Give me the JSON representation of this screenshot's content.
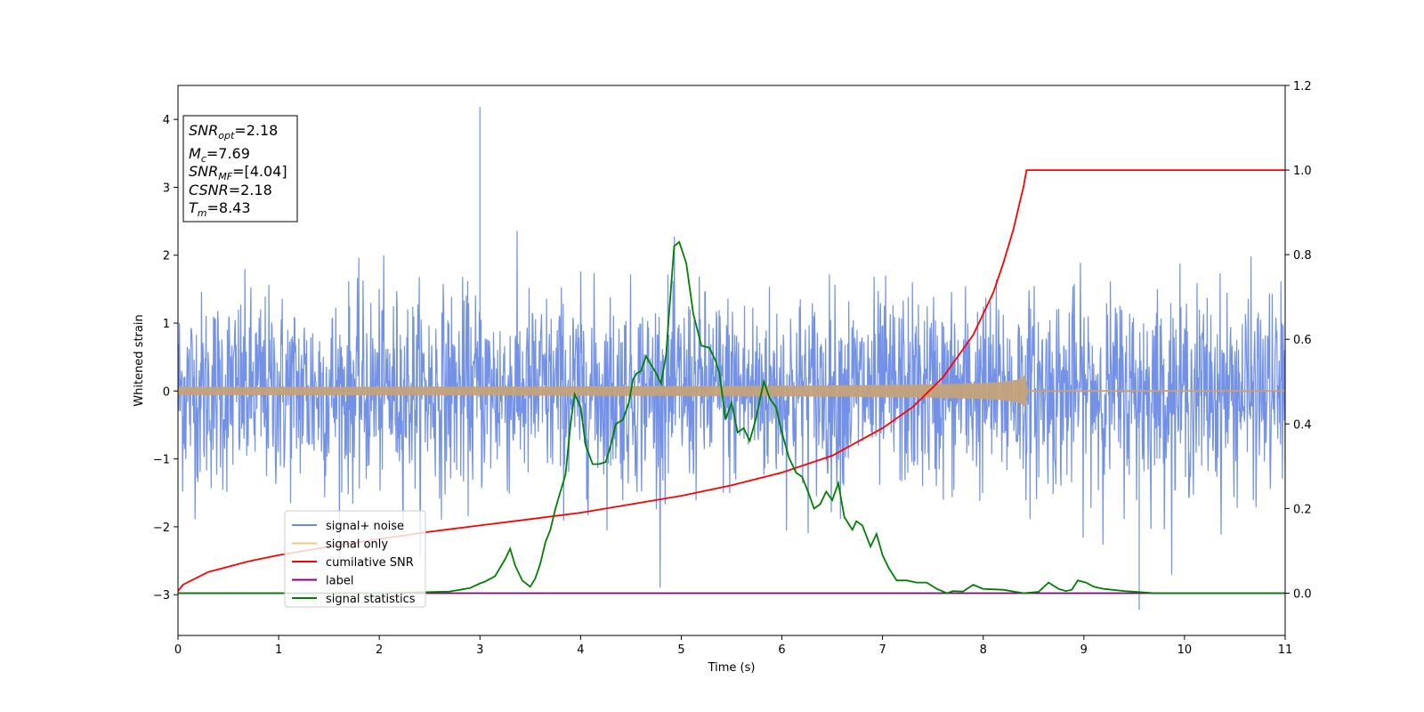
{
  "chart_data": {
    "type": "line",
    "title": "",
    "xlabel": "Time (s)",
    "ylabel": "Whitened strain",
    "xlim": [
      0,
      11
    ],
    "ylim": [
      -3.6,
      4.5
    ],
    "y2lim": [
      -0.1,
      1.2
    ],
    "x_ticks": [
      "0",
      "1",
      "2",
      "3",
      "4",
      "5",
      "6",
      "7",
      "8",
      "9",
      "10",
      "11"
    ],
    "y_ticks": [
      "4",
      "3",
      "2",
      "1",
      "0",
      "−1",
      "−2",
      "−3"
    ],
    "y2_ticks": [
      "1.2",
      "1.0",
      "0.8",
      "0.6",
      "0.4",
      "0.2",
      "0.0"
    ],
    "legend": {
      "placement": "lower-left",
      "entries": [
        {
          "label": "signal+ noise",
          "color": "#6a8be6"
        },
        {
          "label": "signal only",
          "color": "#f5c77a"
        },
        {
          "label": "cumilative SNR",
          "color": "#ff0000"
        },
        {
          "label": "label",
          "color": "#800080"
        },
        {
          "label": "signal statistics",
          "color": "#008000"
        }
      ]
    },
    "info_box": {
      "snr_opt": {
        "main": "SNR",
        "sub": "opt",
        "rest": "=2.18"
      },
      "mc": {
        "main": "M",
        "sub": "c",
        "rest": "=7.69"
      },
      "snr_mf": {
        "main": "SNR",
        "sub": "MF",
        "rest": "=[4.04]"
      },
      "csnr": {
        "main": "CSNR",
        "sub": "",
        "rest": "=2.18"
      },
      "tm": {
        "main": "T",
        "sub": "m",
        "rest": "=8.43"
      }
    },
    "series": [
      {
        "name": "signal+ noise",
        "axis": "left",
        "color": "#6a8be6",
        "style": "noise",
        "description_values": {
          "std": 0.72,
          "max_spike": [
            3.0,
            4.18
          ],
          "min_spike": [
            9.55,
            -3.22
          ]
        }
      },
      {
        "name": "signal only",
        "axis": "left",
        "color": "#f5c77a",
        "style": "chirp",
        "merger_time": 8.43,
        "peak_amplitude": 0.28
      },
      {
        "name": "cumilative SNR",
        "axis": "right",
        "color": "#ff0000",
        "x": [
          0,
          0.05,
          0.3,
          0.7,
          1.0,
          1.5,
          2.0,
          2.5,
          3.0,
          3.5,
          4.0,
          4.5,
          5.0,
          5.5,
          6.0,
          6.5,
          7.0,
          7.3,
          7.6,
          7.9,
          8.1,
          8.2,
          8.3,
          8.36,
          8.4,
          8.43,
          11
        ],
        "y": [
          0.005,
          0.02,
          0.05,
          0.075,
          0.09,
          0.11,
          0.128,
          0.145,
          0.16,
          0.175,
          0.19,
          0.21,
          0.23,
          0.255,
          0.285,
          0.325,
          0.39,
          0.44,
          0.51,
          0.61,
          0.71,
          0.78,
          0.86,
          0.92,
          0.96,
          1.0,
          1.0
        ]
      },
      {
        "name": "label",
        "axis": "right",
        "color": "#800080",
        "x": [
          0,
          11
        ],
        "y": [
          0.0,
          0.0
        ]
      },
      {
        "name": "signal statistics",
        "axis": "right",
        "color": "#008000",
        "x": [
          0,
          0.5,
          1.0,
          1.5,
          2.0,
          2.4,
          2.7,
          2.8,
          2.9,
          3.0,
          3.05,
          3.15,
          3.25,
          3.3,
          3.35,
          3.42,
          3.5,
          3.55,
          3.6,
          3.65,
          3.7,
          3.75,
          3.8,
          3.85,
          3.9,
          3.94,
          4.0,
          4.05,
          4.12,
          4.18,
          4.25,
          4.3,
          4.35,
          4.42,
          4.48,
          4.52,
          4.56,
          4.6,
          4.65,
          4.7,
          4.75,
          4.8,
          4.85,
          4.88,
          4.93,
          4.98,
          5.05,
          5.12,
          5.2,
          5.28,
          5.34,
          5.38,
          5.44,
          5.5,
          5.56,
          5.62,
          5.68,
          5.74,
          5.82,
          5.88,
          5.94,
          6.0,
          6.07,
          6.14,
          6.2,
          6.26,
          6.32,
          6.38,
          6.44,
          6.5,
          6.56,
          6.62,
          6.7,
          6.74,
          6.8,
          6.88,
          6.94,
          7.0,
          7.06,
          7.14,
          7.24,
          7.34,
          7.44,
          7.54,
          7.64,
          7.7,
          7.8,
          7.9,
          8.0,
          8.2,
          8.4,
          8.55,
          8.65,
          8.75,
          8.82,
          8.88,
          8.94,
          9.02,
          9.1,
          9.2,
          9.4,
          9.7,
          10.0,
          10.5,
          11
        ],
        "y": [
          0.0,
          0.0,
          0.0,
          0.0,
          0.0,
          0.002,
          0.004,
          0.008,
          0.012,
          0.023,
          0.027,
          0.04,
          0.08,
          0.105,
          0.065,
          0.03,
          0.015,
          0.035,
          0.07,
          0.12,
          0.15,
          0.2,
          0.24,
          0.28,
          0.4,
          0.47,
          0.44,
          0.35,
          0.305,
          0.305,
          0.31,
          0.35,
          0.4,
          0.41,
          0.45,
          0.505,
          0.52,
          0.525,
          0.56,
          0.54,
          0.52,
          0.495,
          0.565,
          0.665,
          0.82,
          0.83,
          0.78,
          0.66,
          0.585,
          0.58,
          0.55,
          0.52,
          0.41,
          0.45,
          0.38,
          0.39,
          0.36,
          0.41,
          0.5,
          0.46,
          0.44,
          0.38,
          0.32,
          0.285,
          0.275,
          0.24,
          0.2,
          0.21,
          0.24,
          0.22,
          0.26,
          0.18,
          0.15,
          0.17,
          0.16,
          0.11,
          0.14,
          0.09,
          0.06,
          0.03,
          0.03,
          0.025,
          0.025,
          0.01,
          0.0,
          0.005,
          0.004,
          0.02,
          0.01,
          0.008,
          0.0,
          0.003,
          0.025,
          0.01,
          0.005,
          0.008,
          0.03,
          0.025,
          0.015,
          0.01,
          0.005,
          0.0,
          0.0,
          0.0,
          0.0
        ]
      }
    ]
  }
}
